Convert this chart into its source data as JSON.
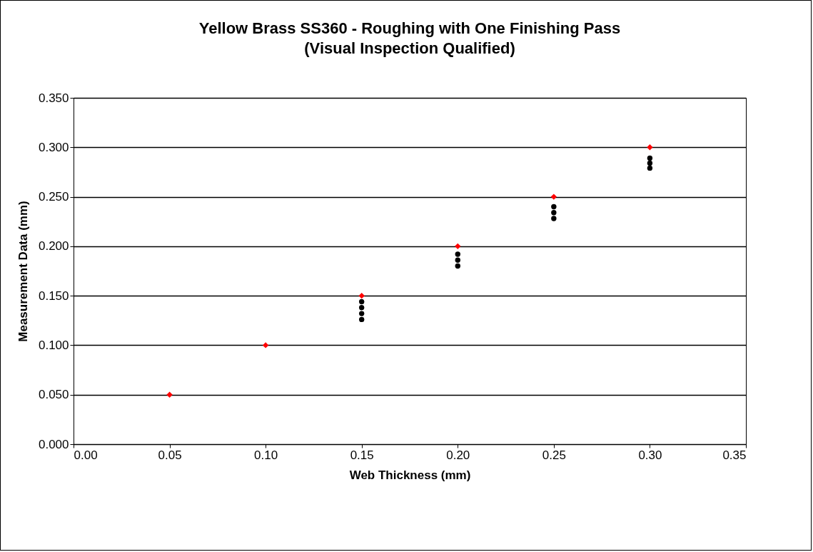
{
  "chart_data": {
    "type": "scatter",
    "title": "Yellow Brass SS360 - Roughing with One Finishing Pass",
    "subtitle": "(Visual Inspection Qualified)",
    "xlabel": "Web Thickness (mm)",
    "ylabel": "Measurement Data (mm)",
    "series": [
      {
        "color": "#000000",
        "marker": "circle",
        "x": [
          0.15,
          0.15,
          0.15,
          0.15,
          0.2,
          0.2,
          0.2,
          0.25,
          0.25,
          0.25,
          0.3,
          0.3,
          0.3
        ],
        "values": [
          0.126,
          0.132,
          0.138,
          0.144,
          0.18,
          0.186,
          0.192,
          0.228,
          0.234,
          0.24,
          0.279,
          0.284,
          0.289
        ]
      },
      {
        "color": "#ff0000",
        "marker": "diamond",
        "x": [
          0.05,
          0.1,
          0.15,
          0.2,
          0.25,
          0.3
        ],
        "values": [
          0.05,
          0.1,
          0.15,
          0.2,
          0.25,
          0.3
        ]
      }
    ],
    "xlim": [
      0,
      0.35
    ],
    "xticks": [
      {
        "value": 0,
        "label": "0.00"
      },
      {
        "value": 0.05,
        "label": "0.05"
      },
      {
        "value": 0.1,
        "label": "0.10"
      },
      {
        "value": 0.15,
        "label": "0.15"
      },
      {
        "value": 0.2,
        "label": "0.20"
      },
      {
        "value": 0.25,
        "label": "0.25"
      },
      {
        "value": 0.3,
        "label": "0.30"
      },
      {
        "value": 0.35,
        "label": "0.35"
      }
    ],
    "ylim": [
      0,
      0.35
    ],
    "yticks": [
      {
        "value": 0,
        "label": "0.000"
      },
      {
        "value": 0.05,
        "label": "0.050"
      },
      {
        "value": 0.1,
        "label": "0.100"
      },
      {
        "value": 0.15,
        "label": "0.150"
      },
      {
        "value": 0.2,
        "label": "0.200"
      },
      {
        "value": 0.25,
        "label": "0.250"
      },
      {
        "value": 0.3,
        "label": "0.300"
      },
      {
        "value": 0.35,
        "label": "0.350"
      }
    ],
    "grid": "y"
  }
}
